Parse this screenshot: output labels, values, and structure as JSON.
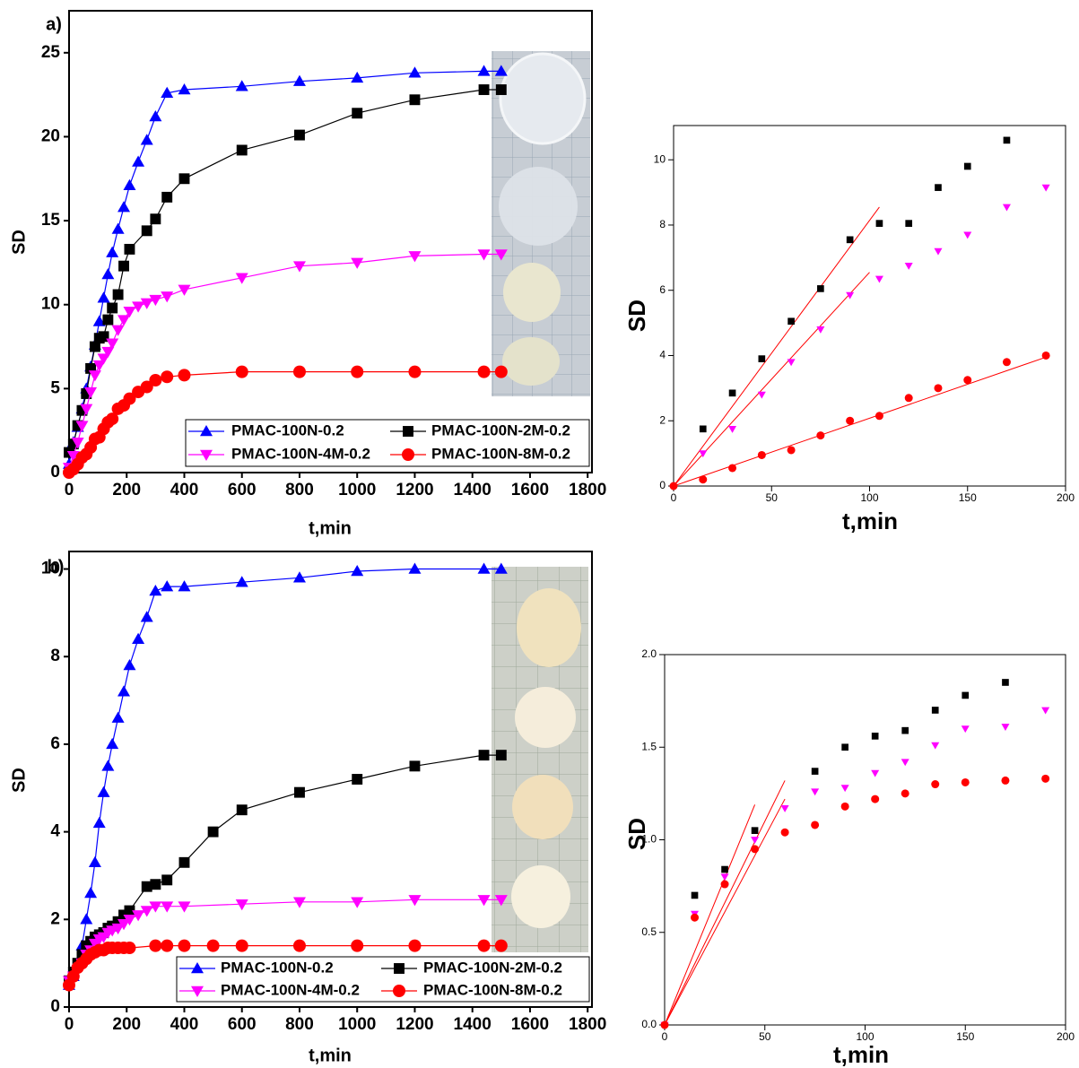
{
  "chart_data": [
    {
      "type": "line",
      "panel_label": "a)",
      "x_label": "t,min",
      "y_label": "SD",
      "xlim": [
        0,
        1815
      ],
      "ylim": [
        0,
        27.5
      ],
      "xticks": [
        0,
        200,
        400,
        600,
        800,
        1000,
        1200,
        1400,
        1600,
        1800
      ],
      "yticks": [
        0,
        5,
        10,
        15,
        20,
        25
      ],
      "legend": "bottom-right",
      "series": [
        {
          "name": "PMAC-100N-0.2",
          "color": "#0000ff",
          "marker": "triangle-up",
          "x": [
            0,
            15,
            30,
            45,
            60,
            75,
            90,
            105,
            120,
            135,
            150,
            170,
            190,
            210,
            240,
            270,
            300,
            340,
            400,
            600,
            800,
            1000,
            1200,
            1440,
            1500
          ],
          "values": [
            0.5,
            1.8,
            2.7,
            3.8,
            5.0,
            6.3,
            7.6,
            9.0,
            10.4,
            11.8,
            13.1,
            14.5,
            15.8,
            17.1,
            18.5,
            19.8,
            21.2,
            22.6,
            22.8,
            23.0,
            23.3,
            23.5,
            23.8,
            23.9,
            23.9
          ]
        },
        {
          "name": "PMAC-100N-2M-0.2",
          "color": "#000000",
          "marker": "square",
          "x": [
            0,
            15,
            30,
            45,
            60,
            75,
            90,
            105,
            120,
            135,
            150,
            170,
            190,
            210,
            270,
            300,
            340,
            400,
            600,
            800,
            1000,
            1200,
            1440,
            1500
          ],
          "values": [
            1.2,
            1.7,
            2.8,
            3.7,
            4.7,
            6.2,
            7.5,
            8.0,
            8.1,
            9.1,
            9.8,
            10.6,
            12.3,
            13.3,
            14.4,
            15.1,
            16.4,
            17.5,
            19.2,
            20.1,
            21.4,
            22.2,
            22.8,
            22.8
          ]
        },
        {
          "name": "PMAC-100N-4M-0.2",
          "color": "#ff00ff",
          "marker": "triangle-down",
          "x": [
            0,
            15,
            30,
            45,
            60,
            75,
            90,
            105,
            120,
            135,
            150,
            170,
            190,
            210,
            240,
            270,
            300,
            340,
            400,
            600,
            800,
            1000,
            1200,
            1440,
            1500
          ],
          "values": [
            0.3,
            1.0,
            1.8,
            2.8,
            3.8,
            4.8,
            5.8,
            6.4,
            6.8,
            7.2,
            7.7,
            8.5,
            9.1,
            9.6,
            9.9,
            10.1,
            10.3,
            10.5,
            10.9,
            11.6,
            12.3,
            12.5,
            12.9,
            13.0,
            13.0
          ]
        },
        {
          "name": "PMAC-100N-8M-0.2",
          "color": "#ff0000",
          "marker": "circle",
          "x": [
            0,
            15,
            30,
            45,
            60,
            75,
            90,
            105,
            120,
            135,
            150,
            170,
            190,
            210,
            240,
            270,
            300,
            340,
            400,
            600,
            800,
            1000,
            1200,
            1440,
            1500
          ],
          "values": [
            0,
            0.2,
            0.5,
            0.9,
            1.1,
            1.5,
            2.0,
            2.1,
            2.6,
            3.0,
            3.2,
            3.8,
            4.0,
            4.4,
            4.8,
            5.1,
            5.5,
            5.7,
            5.8,
            6.0,
            6.0,
            6.0,
            6.0,
            6.0,
            6.0
          ]
        }
      ]
    },
    {
      "type": "scatter",
      "x_label": "t,min",
      "y_label": "SD",
      "xlim": [
        0,
        200
      ],
      "ylim": [
        0,
        11.05
      ],
      "xticks": [
        0,
        50,
        100,
        150,
        200
      ],
      "yticks": [
        0,
        2,
        4,
        6,
        8,
        10
      ],
      "series": [
        {
          "color": "#000000",
          "marker": "square",
          "x": [
            15,
            30,
            45,
            60,
            75,
            90,
            105,
            120,
            135,
            150,
            170
          ],
          "values": [
            1.75,
            2.85,
            3.9,
            5.05,
            6.05,
            7.55,
            8.05,
            8.05,
            9.15,
            9.8,
            10.6
          ]
        },
        {
          "color": "#ff00ff",
          "marker": "triangle-down",
          "x": [
            15,
            30,
            45,
            60,
            75,
            90,
            105,
            120,
            135,
            150,
            170,
            190
          ],
          "values": [
            1.0,
            1.75,
            2.8,
            3.8,
            4.8,
            5.85,
            6.35,
            6.75,
            7.2,
            7.7,
            8.55,
            9.15
          ]
        },
        {
          "color": "#ff0000",
          "marker": "circle",
          "x": [
            0,
            15,
            30,
            45,
            60,
            75,
            90,
            105,
            120,
            135,
            150,
            170,
            190
          ],
          "values": [
            0,
            0.2,
            0.55,
            0.95,
            1.1,
            1.55,
            2.0,
            2.15,
            2.7,
            3.0,
            3.25,
            3.8,
            4.0
          ]
        }
      ],
      "fits": [
        {
          "color": "#ff0000",
          "x": [
            0,
            105
          ],
          "values": [
            0,
            8.55
          ]
        },
        {
          "color": "#ff0000",
          "x": [
            0,
            100
          ],
          "values": [
            0,
            6.55
          ]
        },
        {
          "color": "#ff0000",
          "x": [
            0,
            190
          ],
          "values": [
            0,
            3.95
          ]
        }
      ]
    },
    {
      "type": "line",
      "panel_label": "b)",
      "x_label": "t,min",
      "y_label": "SD",
      "xlim": [
        0,
        1815
      ],
      "ylim": [
        0,
        10.4
      ],
      "xticks": [
        0,
        200,
        400,
        600,
        800,
        1000,
        1200,
        1400,
        1600,
        1800
      ],
      "yticks": [
        0,
        2,
        4,
        6,
        8,
        10
      ],
      "legend": "bottom-right",
      "series": [
        {
          "name": "PMAC-100N-0.2",
          "color": "#0000ff",
          "marker": "triangle-up",
          "x": [
            0,
            15,
            30,
            45,
            60,
            75,
            90,
            105,
            120,
            135,
            150,
            170,
            190,
            210,
            240,
            270,
            300,
            340,
            400,
            600,
            800,
            1000,
            1200,
            1440,
            1500
          ],
          "values": [
            0.5,
            0.7,
            1.0,
            1.4,
            2.0,
            2.6,
            3.3,
            4.2,
            4.9,
            5.5,
            6.0,
            6.6,
            7.2,
            7.8,
            8.4,
            8.9,
            9.5,
            9.6,
            9.6,
            9.7,
            9.8,
            9.95,
            10,
            10,
            10
          ]
        },
        {
          "name": "PMAC-100N-2M-0.2",
          "color": "#000000",
          "marker": "square",
          "x": [
            0,
            15,
            30,
            45,
            60,
            75,
            90,
            105,
            120,
            135,
            150,
            170,
            190,
            210,
            270,
            300,
            340,
            400,
            500,
            600,
            800,
            1000,
            1200,
            1440,
            1500
          ],
          "values": [
            0.6,
            0.8,
            1.0,
            1.2,
            1.4,
            1.5,
            1.6,
            1.65,
            1.7,
            1.8,
            1.85,
            1.95,
            2.1,
            2.2,
            2.75,
            2.8,
            2.9,
            3.3,
            4.0,
            4.5,
            4.9,
            5.2,
            5.5,
            5.75,
            5.75
          ]
        },
        {
          "name": "PMAC-100N-4M-0.2",
          "color": "#ff00ff",
          "marker": "triangle-down",
          "x": [
            0,
            15,
            30,
            45,
            60,
            75,
            90,
            105,
            120,
            135,
            150,
            170,
            190,
            210,
            240,
            270,
            300,
            340,
            400,
            600,
            800,
            1000,
            1200,
            1440,
            1500
          ],
          "values": [
            0.6,
            0.7,
            0.85,
            1.0,
            1.2,
            1.3,
            1.45,
            1.55,
            1.6,
            1.7,
            1.75,
            1.8,
            1.9,
            2.0,
            2.1,
            2.2,
            2.3,
            2.3,
            2.3,
            2.35,
            2.4,
            2.4,
            2.45,
            2.45,
            2.45
          ]
        },
        {
          "name": "PMAC-100N-8M-0.2",
          "color": "#ff0000",
          "marker": "circle",
          "x": [
            0,
            15,
            30,
            45,
            60,
            75,
            90,
            105,
            120,
            135,
            150,
            170,
            190,
            210,
            300,
            340,
            400,
            500,
            600,
            800,
            1000,
            1200,
            1440,
            1500
          ],
          "values": [
            0.5,
            0.7,
            0.9,
            1.0,
            1.1,
            1.2,
            1.25,
            1.3,
            1.3,
            1.35,
            1.35,
            1.35,
            1.35,
            1.35,
            1.4,
            1.4,
            1.4,
            1.4,
            1.4,
            1.4,
            1.4,
            1.4,
            1.4,
            1.4
          ]
        }
      ]
    },
    {
      "type": "scatter",
      "x_label": "t,min",
      "y_label": "SD",
      "xlim": [
        0,
        200
      ],
      "ylim": [
        0,
        2
      ],
      "xticks": [
        0,
        50,
        100,
        150,
        200
      ],
      "yticks": [
        {
          "value": 0,
          "label": "0.0"
        },
        0.5,
        {
          "value": 1,
          "label": "1.0"
        },
        1.5,
        {
          "value": 2,
          "label": "2.0"
        }
      ],
      "series": [
        {
          "color": "#000000",
          "marker": "square",
          "x": [
            15,
            30,
            45,
            75,
            90,
            105,
            120,
            135,
            150,
            170
          ],
          "values": [
            0.7,
            0.84,
            1.05,
            1.37,
            1.5,
            1.56,
            1.59,
            1.7,
            1.78,
            1.85
          ]
        },
        {
          "color": "#ff00ff",
          "marker": "triangle-down",
          "x": [
            0,
            15,
            30,
            45,
            60,
            75,
            90,
            105,
            120,
            135,
            150,
            170,
            190
          ],
          "values": [
            0,
            0.6,
            0.8,
            1.0,
            1.17,
            1.26,
            1.28,
            1.36,
            1.42,
            1.51,
            1.6,
            1.61,
            1.7
          ]
        },
        {
          "color": "#ff0000",
          "marker": "circle",
          "x": [
            0,
            15,
            30,
            45,
            60,
            75,
            90,
            105,
            120,
            135,
            150,
            170,
            190
          ],
          "values": [
            0,
            0.58,
            0.76,
            0.95,
            1.04,
            1.08,
            1.18,
            1.22,
            1.25,
            1.3,
            1.31,
            1.32,
            1.33
          ]
        }
      ],
      "fits": [
        {
          "color": "#ff0000",
          "x": [
            0,
            45
          ],
          "values": [
            0,
            1.19
          ]
        },
        {
          "color": "#ff0000",
          "x": [
            0,
            60
          ],
          "values": [
            0,
            1.32
          ]
        },
        {
          "color": "#ff0000",
          "x": [
            0,
            60
          ],
          "values": [
            0,
            1.22
          ]
        }
      ]
    }
  ]
}
